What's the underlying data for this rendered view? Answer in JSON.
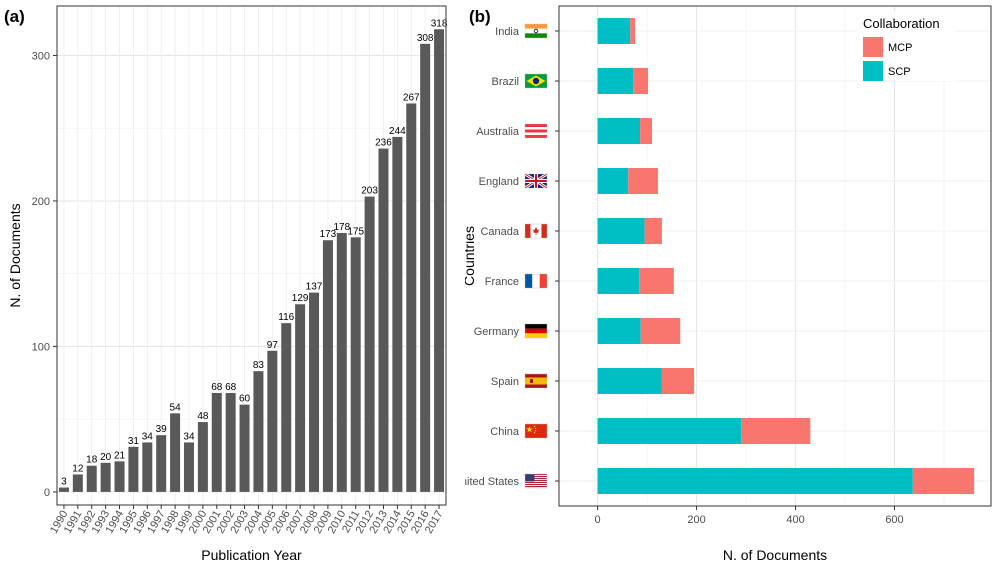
{
  "chart_data": [
    {
      "panel_label": "(a)",
      "type": "bar",
      "xlabel": "Publication Year",
      "ylabel": "N. of Documents",
      "categories": [
        "1990",
        "1991",
        "1992",
        "1993",
        "1994",
        "1995",
        "1996",
        "1997",
        "1998",
        "1999",
        "2000",
        "2001",
        "2002",
        "2003",
        "2004",
        "2005",
        "2006",
        "2007",
        "2008",
        "2009",
        "2010",
        "2011",
        "2012",
        "2013",
        "2014",
        "2015",
        "2016",
        "2017"
      ],
      "values": [
        3,
        12,
        18,
        20,
        21,
        31,
        34,
        39,
        54,
        34,
        48,
        68,
        68,
        60,
        83,
        97,
        116,
        129,
        137,
        173,
        178,
        175,
        203,
        236,
        244,
        267,
        308,
        318
      ],
      "yticks": [
        0,
        100,
        200,
        300
      ],
      "ylim": [
        -9,
        334
      ],
      "bar_color": "#595959",
      "grid": true
    },
    {
      "panel_label": "(b)",
      "type": "bar",
      "orientation": "horizontal",
      "stacked": true,
      "xlabel": "N. of Documents",
      "ylabel": "Countries",
      "categories": [
        "India",
        "Brazil",
        "Australia",
        "England",
        "Canada",
        "France",
        "Germany",
        "Spain",
        "China",
        "United States"
      ],
      "series": [
        {
          "name": "SCP",
          "color": "#00bfc4",
          "values": [
            66,
            72,
            86,
            62,
            95,
            84,
            87,
            130,
            290,
            637
          ]
        },
        {
          "name": "MCP",
          "color": "#f8766d",
          "values": [
            10,
            30,
            24,
            60,
            35,
            70,
            80,
            65,
            140,
            124
          ]
        }
      ],
      "legend": {
        "title": "Collaboration",
        "entries": [
          "MCP",
          "SCP"
        ],
        "placement": "top-right"
      },
      "xticks": [
        0,
        200,
        400,
        600
      ],
      "xlim": [
        -78,
        795
      ],
      "grid": true,
      "flags": [
        "india-flag-icon",
        "brazil-flag-icon",
        "australia-flag-icon",
        "england-flag-icon",
        "canada-flag-icon",
        "france-flag-icon",
        "germany-flag-icon",
        "spain-flag-icon",
        "china-flag-icon",
        "united-states-flag-icon"
      ]
    }
  ]
}
